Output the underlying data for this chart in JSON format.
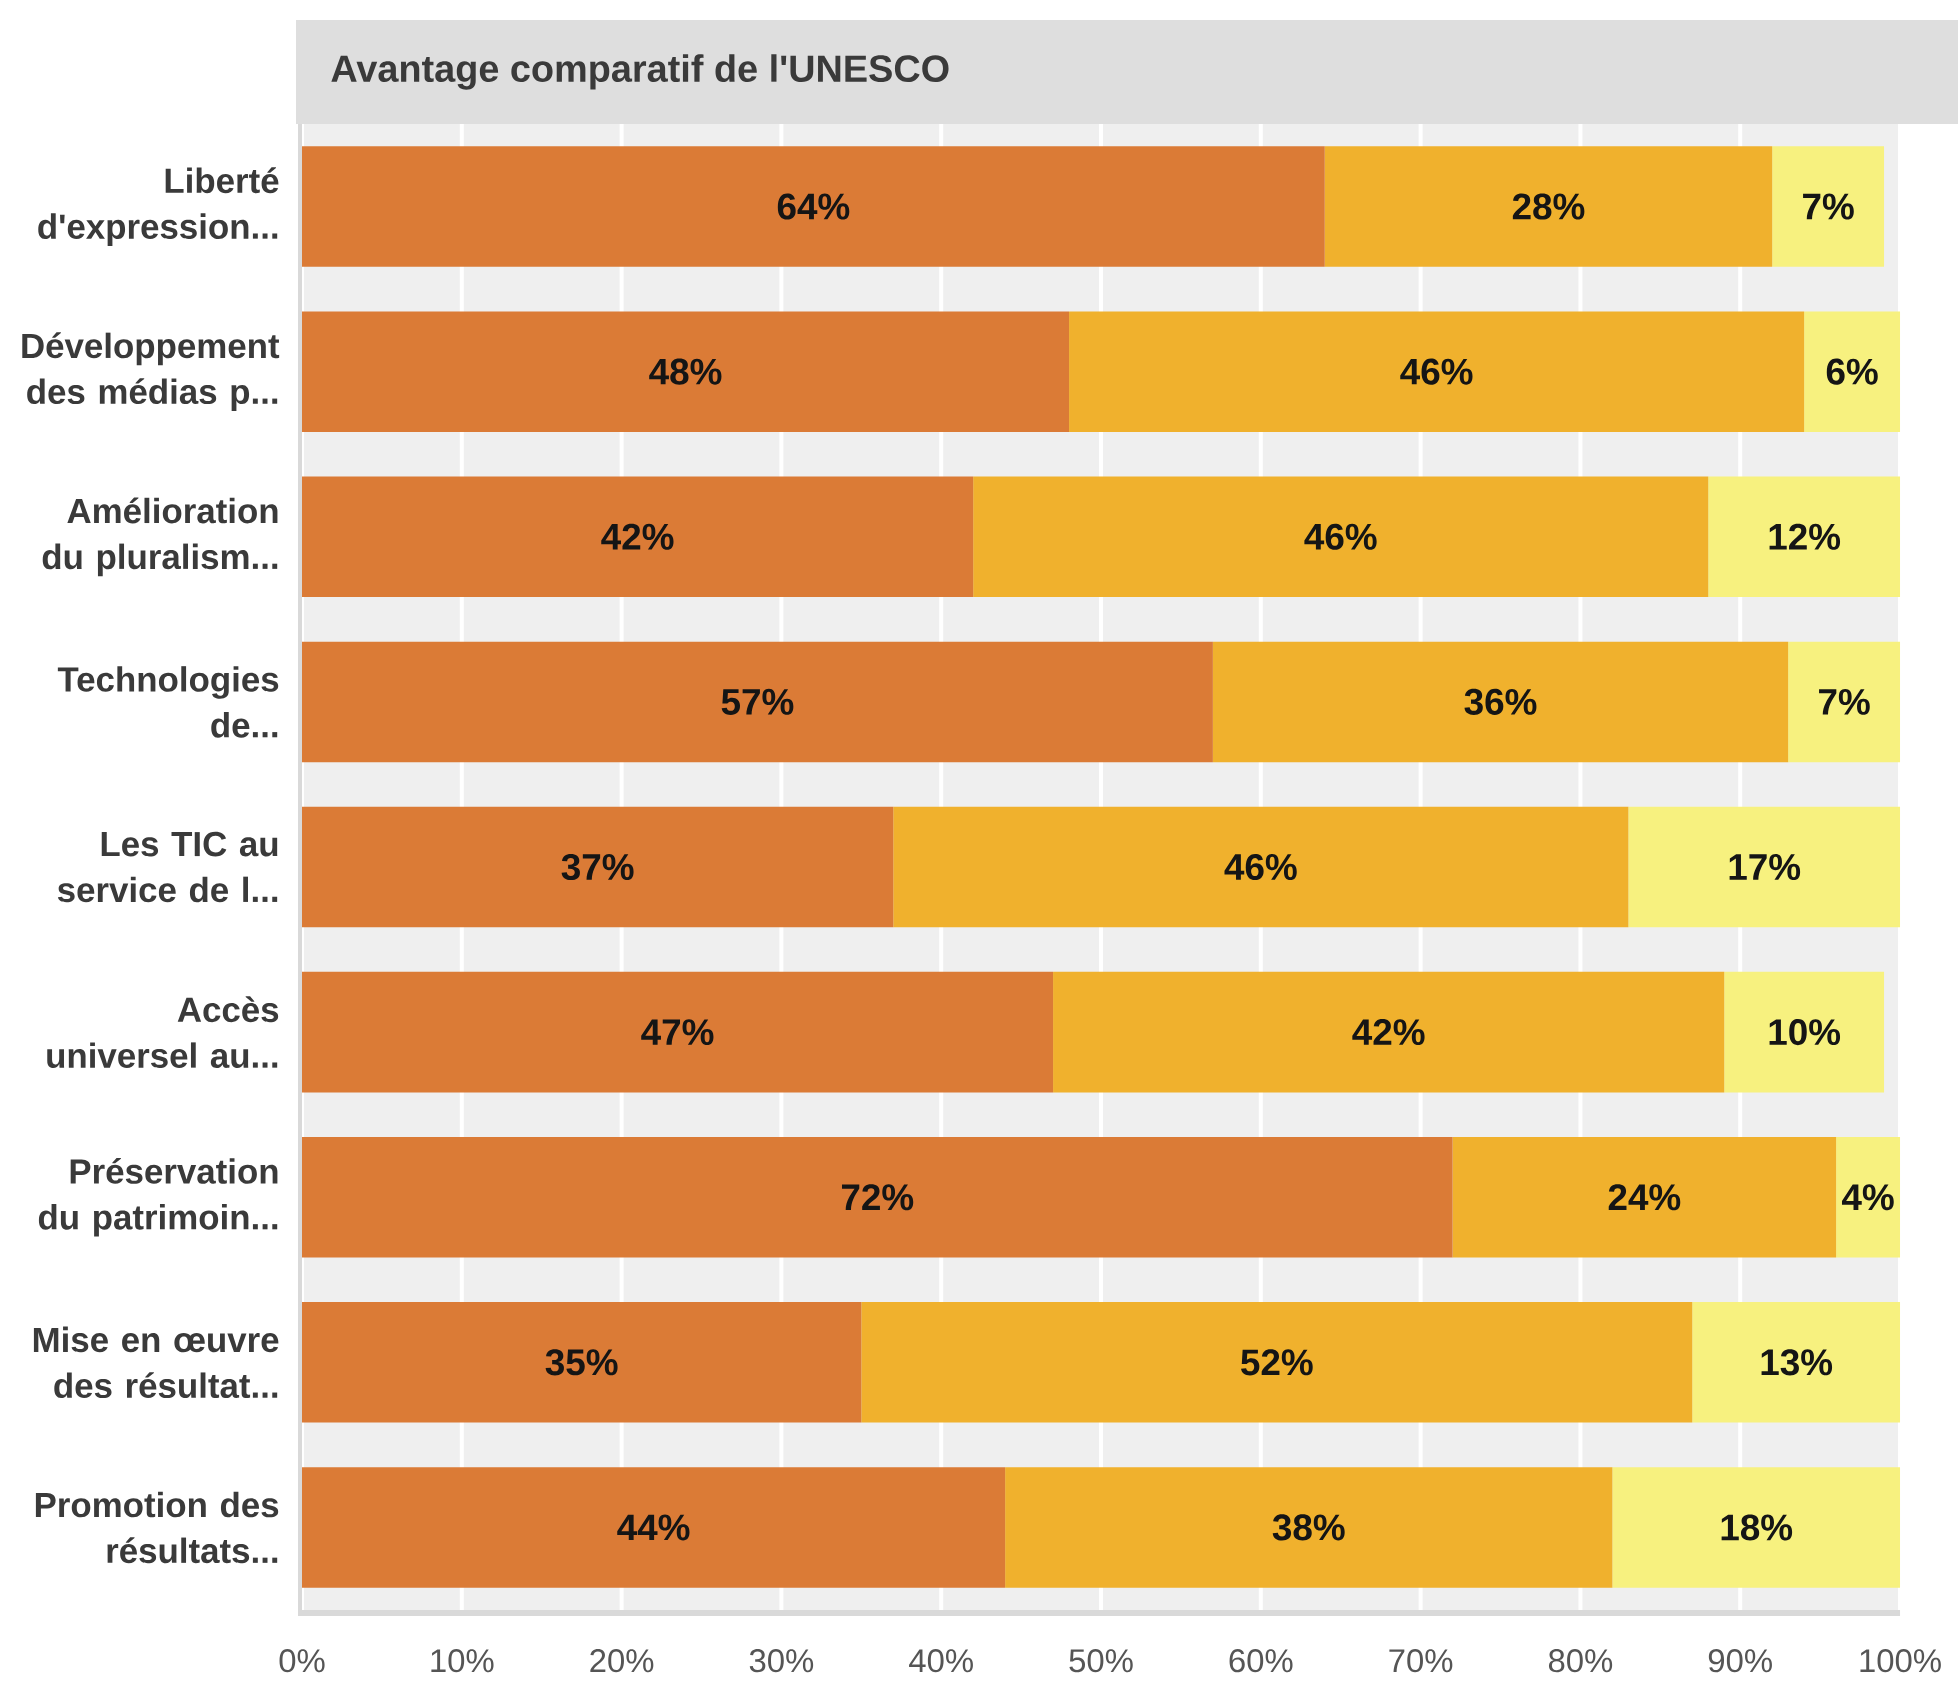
{
  "chart_data": {
    "type": "bar",
    "orientation": "horizontal",
    "stacked": true,
    "title": "Avantage comparatif de l'UNESCO",
    "categories": [
      "Liberté d'expression...",
      "Développement des médias p...",
      "Amélioration du pluralism...",
      "Technologies de...",
      "Les TIC au service de l...",
      "Accès universel au...",
      "Préservation du patrimoin...",
      "Mise en œuvre des résultat...",
      "Promotion des résultats..."
    ],
    "series": [
      {
        "color": "#db7b36",
        "values": [
          64,
          48,
          42,
          57,
          37,
          47,
          72,
          35,
          44
        ],
        "value_labels": [
          "64%",
          "48%",
          "42%",
          "57%",
          "37%",
          "47%",
          "72%",
          "35%",
          "44%"
        ]
      },
      {
        "color": "#f0b12d",
        "values": [
          28,
          46,
          46,
          36,
          46,
          42,
          24,
          52,
          38
        ],
        "value_labels": [
          "28%",
          "46%",
          "46%",
          "36%",
          "46%",
          "42%",
          "24%",
          "52%",
          "38%"
        ]
      },
      {
        "color": "#f7f17f",
        "values": [
          7,
          6,
          12,
          7,
          17,
          10,
          4,
          13,
          18
        ],
        "value_labels": [
          "7%",
          "6%",
          "12%",
          "7%",
          "17%",
          "10%",
          "4%",
          "13%",
          "18%"
        ]
      }
    ],
    "xlim": [
      0,
      100
    ],
    "xticks": [
      {
        "value": 0,
        "label": "0%"
      },
      {
        "value": 10,
        "label": "10%"
      },
      {
        "value": 20,
        "label": "20%"
      },
      {
        "value": 30,
        "label": "30%"
      },
      {
        "value": 40,
        "label": "40%"
      },
      {
        "value": 50,
        "label": "50%"
      },
      {
        "value": 60,
        "label": "60%"
      },
      {
        "value": 70,
        "label": "70%"
      },
      {
        "value": 80,
        "label": "80%"
      },
      {
        "value": 90,
        "label": "90%"
      },
      {
        "value": 100,
        "label": "100%"
      }
    ],
    "grid": "x"
  }
}
